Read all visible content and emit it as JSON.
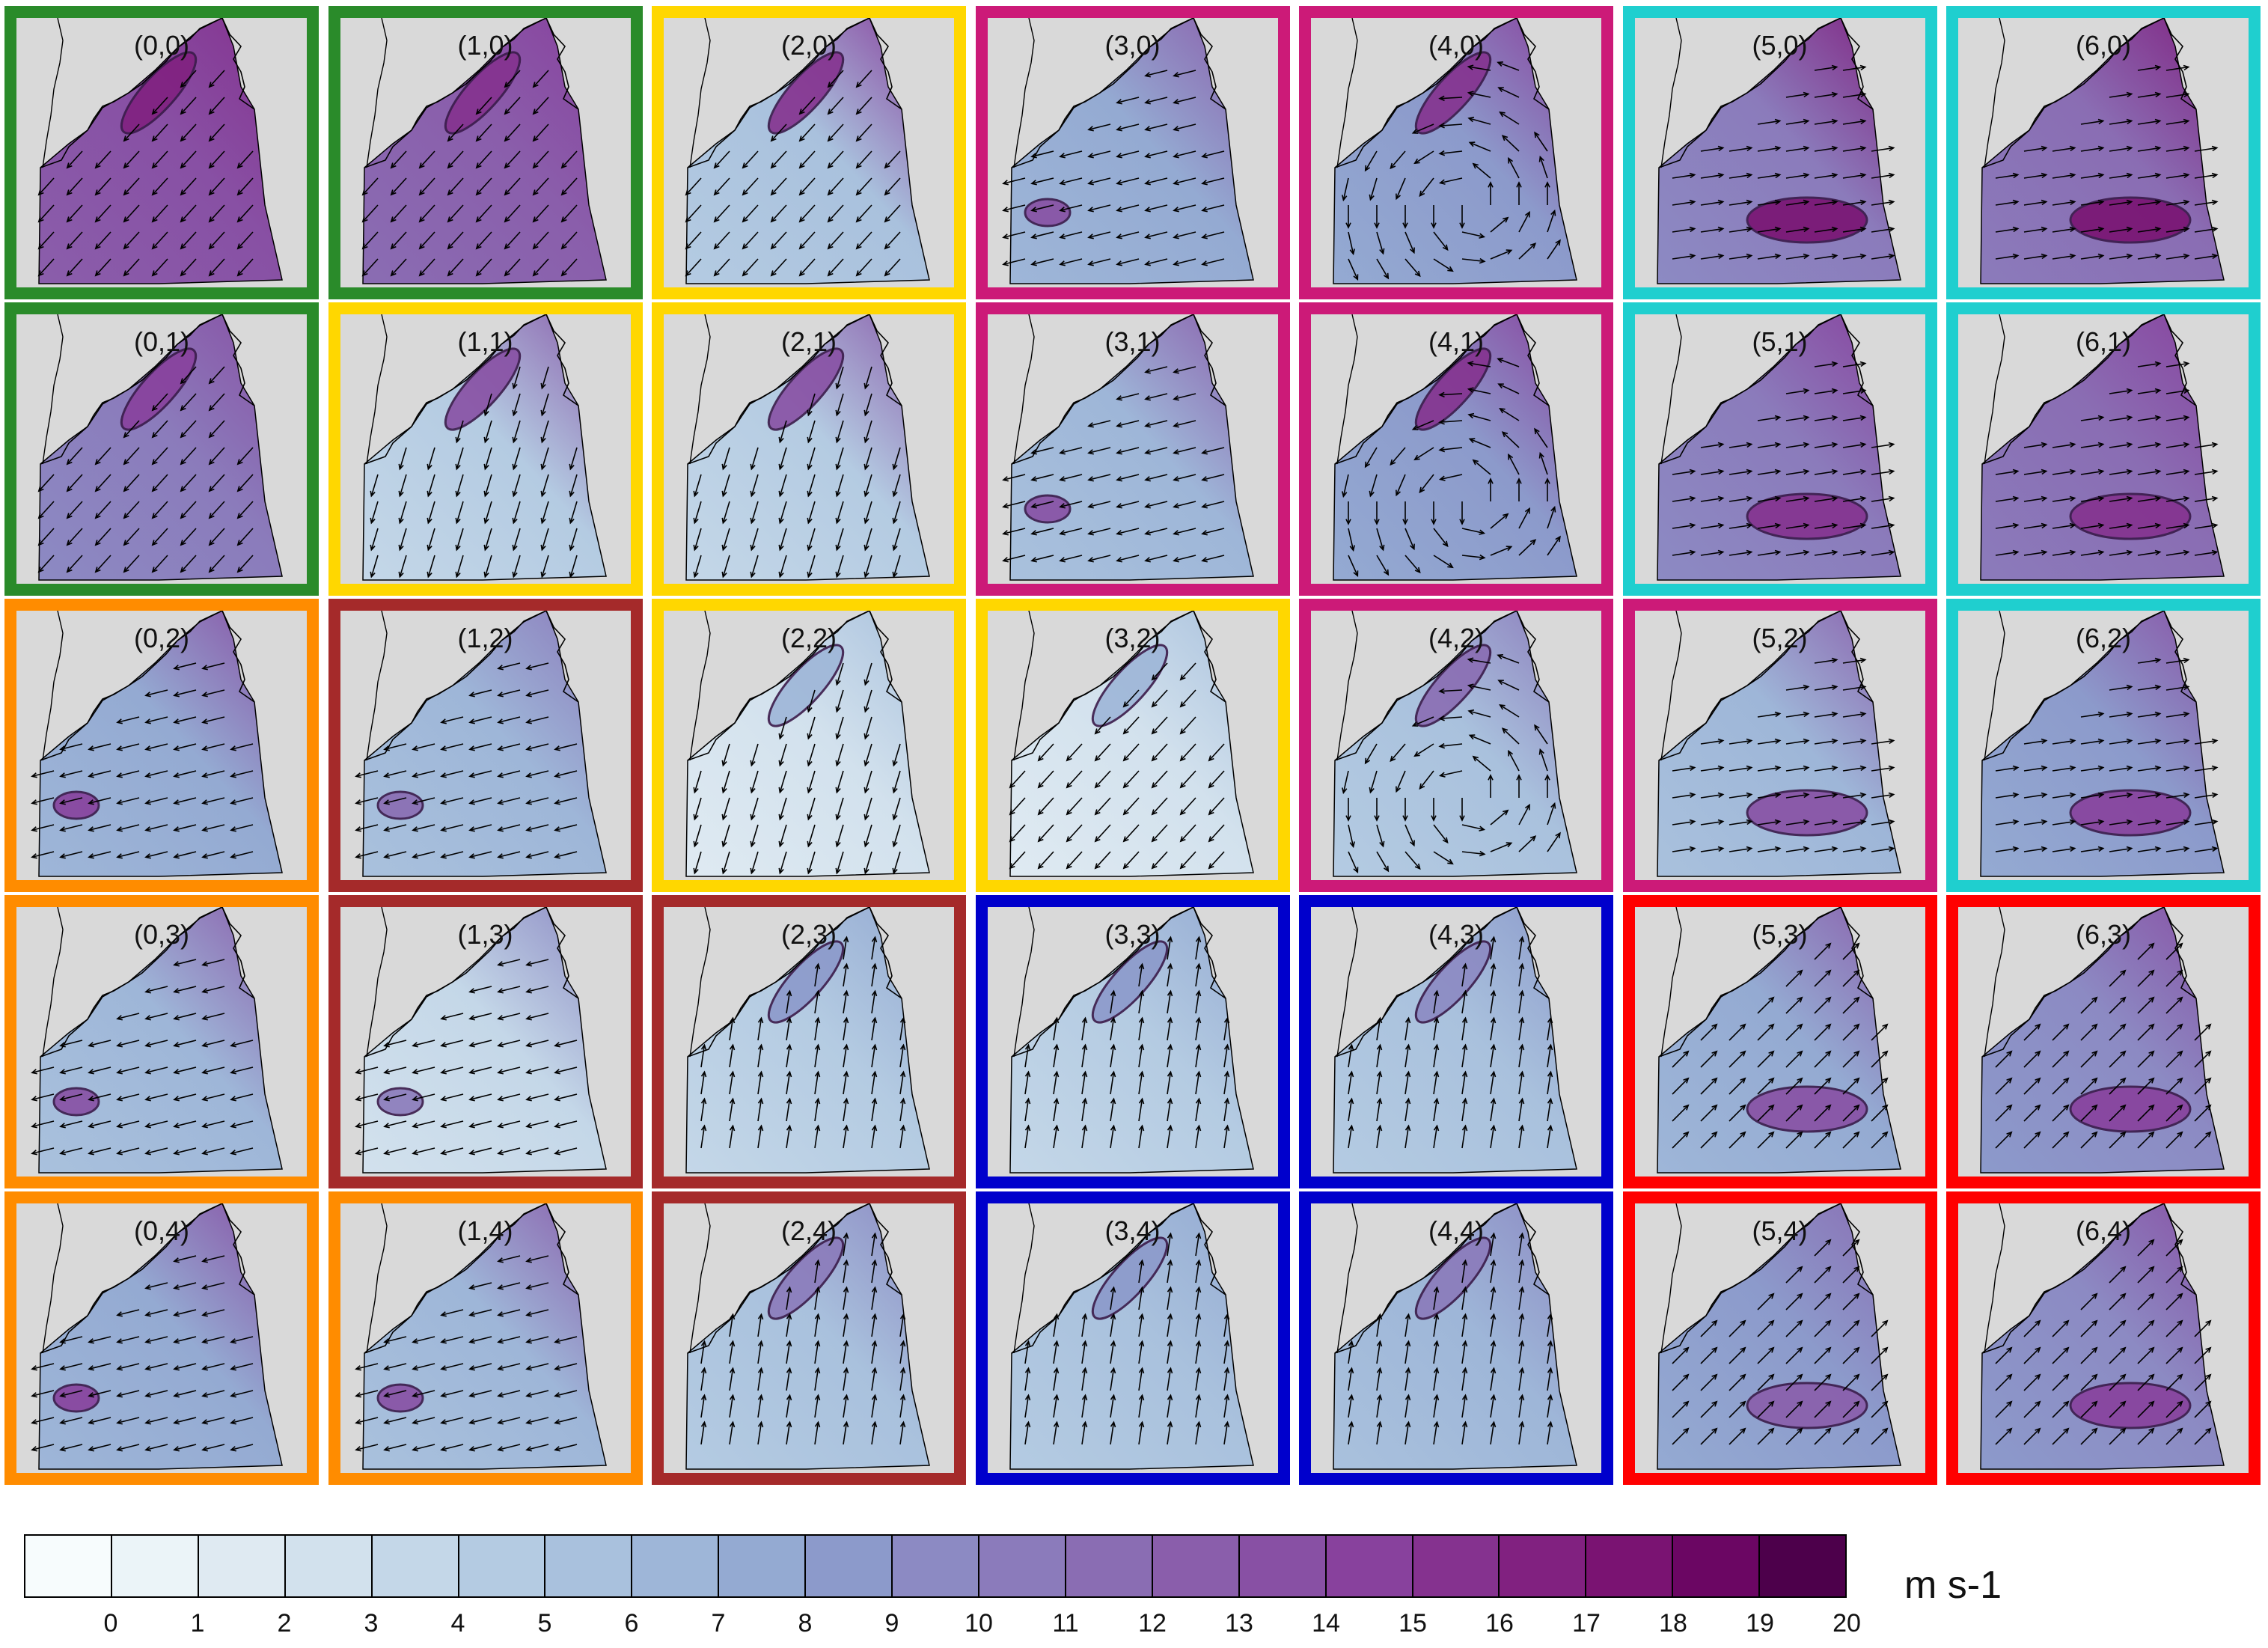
{
  "panels": [
    {
      "label": "(0,0)",
      "frame": "#2a8b2a",
      "mean": 14,
      "jet": 17,
      "flow": "sw"
    },
    {
      "label": "(1,0)",
      "frame": "#2a8b2a",
      "mean": 13,
      "jet": 16,
      "flow": "sw"
    },
    {
      "label": "(2,0)",
      "frame": "#ffd700",
      "mean": 6,
      "jet": 16,
      "flow": "sw"
    },
    {
      "label": "(3,0)",
      "frame": "#cc1a78",
      "mean": 8,
      "jet": 14,
      "flow": "w"
    },
    {
      "label": "(4,0)",
      "frame": "#cc1a78",
      "mean": 9,
      "jet": 16,
      "flow": "cyc"
    },
    {
      "label": "(5,0)",
      "frame": "#1fcfcf",
      "mean": 11,
      "jet": 18,
      "flow": "e"
    },
    {
      "label": "(6,0)",
      "frame": "#1fcfcf",
      "mean": 12,
      "jet": 18,
      "flow": "e"
    },
    {
      "label": "(0,1)",
      "frame": "#2a8b2a",
      "mean": 11,
      "jet": 15,
      "flow": "sw"
    },
    {
      "label": "(1,1)",
      "frame": "#ffd700",
      "mean": 5,
      "jet": 14,
      "flow": "s"
    },
    {
      "label": "(2,1)",
      "frame": "#ffd700",
      "mean": 5,
      "jet": 14,
      "flow": "s"
    },
    {
      "label": "(3,1)",
      "frame": "#cc1a78",
      "mean": 7,
      "jet": 14,
      "flow": "w"
    },
    {
      "label": "(4,1)",
      "frame": "#cc1a78",
      "mean": 9,
      "jet": 16,
      "flow": "cyc"
    },
    {
      "label": "(5,1)",
      "frame": "#1fcfcf",
      "mean": 11,
      "jet": 16,
      "flow": "e"
    },
    {
      "label": "(6,1)",
      "frame": "#1fcfcf",
      "mean": 12,
      "jet": 16,
      "flow": "e"
    },
    {
      "label": "(0,2)",
      "frame": "#ff8c00",
      "mean": 8,
      "jet": 15,
      "flow": "w"
    },
    {
      "label": "(1,2)",
      "frame": "#a52a2a",
      "mean": 7,
      "jet": 12,
      "flow": "w"
    },
    {
      "label": "(2,2)",
      "frame": "#ffd700",
      "mean": 3,
      "jet": 7,
      "flow": "s"
    },
    {
      "label": "(3,2)",
      "frame": "#ffd700",
      "mean": 3,
      "jet": 7,
      "flow": "sw"
    },
    {
      "label": "(4,2)",
      "frame": "#cc1a78",
      "mean": 6,
      "jet": 12,
      "flow": "cyc"
    },
    {
      "label": "(5,2)",
      "frame": "#cc1a78",
      "mean": 7,
      "jet": 14,
      "flow": "e"
    },
    {
      "label": "(6,2)",
      "frame": "#1fcfcf",
      "mean": 9,
      "jet": 15,
      "flow": "e"
    },
    {
      "label": "(0,3)",
      "frame": "#ff8c00",
      "mean": 7,
      "jet": 14,
      "flow": "w"
    },
    {
      "label": "(1,3)",
      "frame": "#a52a2a",
      "mean": 4,
      "jet": 11,
      "flow": "w"
    },
    {
      "label": "(2,3)",
      "frame": "#a52a2a",
      "mean": 5,
      "jet": 9,
      "flow": "n"
    },
    {
      "label": "(3,3)",
      "frame": "#0000cc",
      "mean": 5,
      "jet": 9,
      "flow": "n"
    },
    {
      "label": "(4,3)",
      "frame": "#0000cc",
      "mean": 6,
      "jet": 10,
      "flow": "n"
    },
    {
      "label": "(5,3)",
      "frame": "#ff0000",
      "mean": 8,
      "jet": 14,
      "flow": "ne"
    },
    {
      "label": "(6,3)",
      "frame": "#ff0000",
      "mean": 10,
      "jet": 15,
      "flow": "ne"
    },
    {
      "label": "(0,4)",
      "frame": "#ff8c00",
      "mean": 8,
      "jet": 15,
      "flow": "w"
    },
    {
      "label": "(1,4)",
      "frame": "#ff8c00",
      "mean": 7,
      "jet": 14,
      "flow": "w"
    },
    {
      "label": "(2,4)",
      "frame": "#a52a2a",
      "mean": 6,
      "jet": 11,
      "flow": "n"
    },
    {
      "label": "(3,4)",
      "frame": "#0000cc",
      "mean": 6,
      "jet": 9,
      "flow": "n"
    },
    {
      "label": "(4,4)",
      "frame": "#0000cc",
      "mean": 7,
      "jet": 11,
      "flow": "n"
    },
    {
      "label": "(5,4)",
      "frame": "#ff0000",
      "mean": 9,
      "jet": 13,
      "flow": "ne"
    },
    {
      "label": "(6,4)",
      "frame": "#ff0000",
      "mean": 10,
      "jet": 15,
      "flow": "ne"
    }
  ],
  "colorbar": {
    "colors": [
      "#f7fcfd",
      "#ebf4f8",
      "#dfeaf2",
      "#d2e1ed",
      "#c4d7e8",
      "#b4cbe2",
      "#a9c1dd",
      "#9eb6d8",
      "#94aad2",
      "#8c9acb",
      "#8c8ac3",
      "#8b7bbb",
      "#8a6db3",
      "#8a5eab",
      "#8850a4",
      "#88419d",
      "#85328f",
      "#812180",
      "#7a1372",
      "#6b0663",
      "#4d004b"
    ],
    "ticks": [
      "0",
      "1",
      "2",
      "3",
      "4",
      "5",
      "6",
      "7",
      "8",
      "9",
      "10",
      "11",
      "12",
      "13",
      "14",
      "15",
      "16",
      "17",
      "18",
      "19",
      "20"
    ],
    "unit": "m s-1"
  },
  "map": {
    "land": "#d9d9d9"
  }
}
